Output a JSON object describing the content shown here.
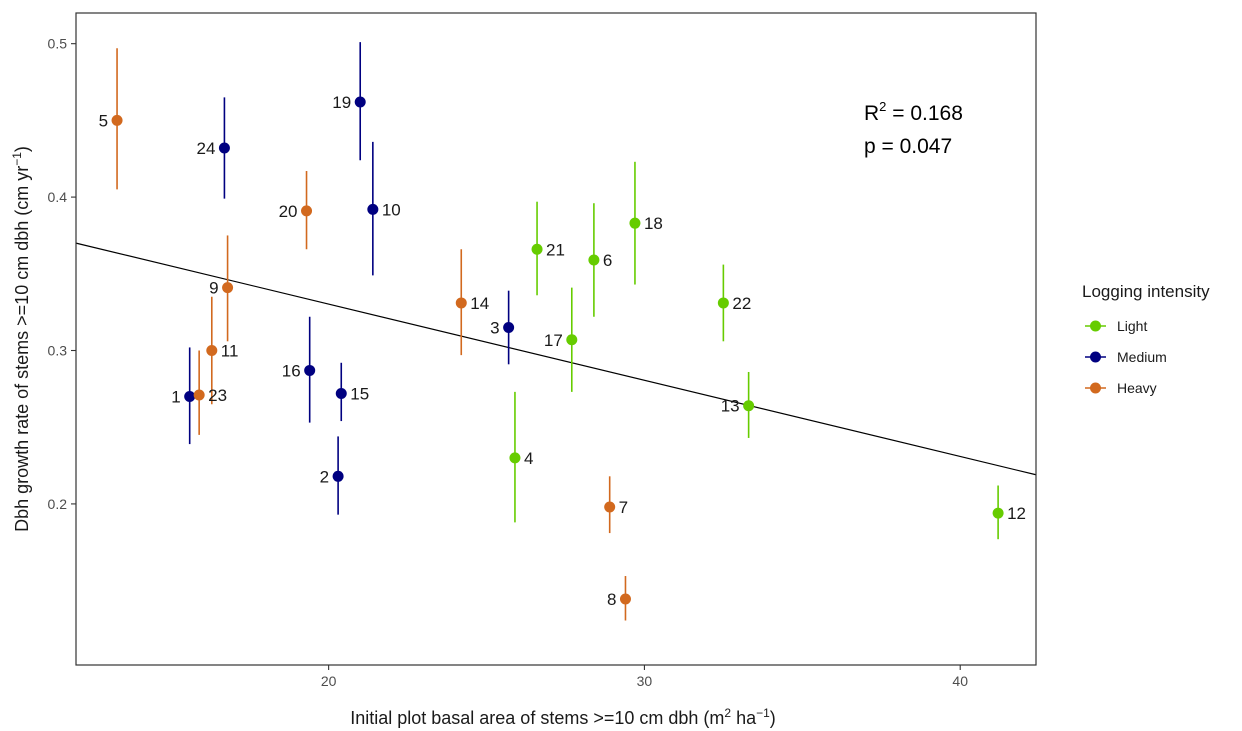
{
  "chart_data": {
    "type": "scatter",
    "xlabel": "Initial plot basal area of stems >=10 cm dbh (m",
    "xlabel_sup1": "2",
    "xlabel_mid": " ha",
    "xlabel_sup2": "−1",
    "xlabel_end": ")",
    "ylabel": "Dbh growth rate of stems >=10 cm dbh (cm  yr",
    "ylabel_sup": "−1",
    "ylabel_end": ")",
    "xlim": [
      12.0,
      42.4
    ],
    "ylim": [
      0.095,
      0.52
    ],
    "x_ticks": [
      20,
      30,
      40
    ],
    "y_ticks": [
      0.2,
      0.3,
      0.4,
      0.5
    ],
    "x_tick_labels": [
      "20",
      "30",
      "40"
    ],
    "y_tick_labels": [
      "0.2",
      "0.3",
      "0.4",
      "0.5"
    ],
    "grid": false,
    "legend_position": "right",
    "legend_title": "Logging intensity",
    "groups": [
      {
        "name": "Light",
        "color": "#66cc00"
      },
      {
        "name": "Medium",
        "color": "#000080"
      },
      {
        "name": "Heavy",
        "color": "#d2691e"
      }
    ],
    "annotation": {
      "r2_prefix": "R",
      "r2_sup": "2",
      "r2_value": " = 0.168",
      "p_text": "p = 0.047"
    },
    "regression_line": {
      "x": [
        12.0,
        42.4
      ],
      "y": [
        0.37,
        0.219
      ]
    },
    "points": [
      {
        "label": "1",
        "group": "Medium",
        "x": 15.6,
        "y": 0.27,
        "ylo": 0.239,
        "yhi": 0.302,
        "label_side": "left"
      },
      {
        "label": "2",
        "group": "Medium",
        "x": 20.3,
        "y": 0.218,
        "ylo": 0.193,
        "yhi": 0.244,
        "label_side": "left"
      },
      {
        "label": "3",
        "group": "Medium",
        "x": 25.7,
        "y": 0.315,
        "ylo": 0.291,
        "yhi": 0.339,
        "label_side": "left"
      },
      {
        "label": "4",
        "group": "Light",
        "x": 25.9,
        "y": 0.23,
        "ylo": 0.188,
        "yhi": 0.273,
        "label_side": "right"
      },
      {
        "label": "5",
        "group": "Heavy",
        "x": 13.3,
        "y": 0.45,
        "ylo": 0.405,
        "yhi": 0.497,
        "label_side": "left"
      },
      {
        "label": "6",
        "group": "Light",
        "x": 28.4,
        "y": 0.359,
        "ylo": 0.322,
        "yhi": 0.396,
        "label_side": "right"
      },
      {
        "label": "7",
        "group": "Heavy",
        "x": 28.9,
        "y": 0.198,
        "ylo": 0.181,
        "yhi": 0.218,
        "label_side": "right"
      },
      {
        "label": "8",
        "group": "Heavy",
        "x": 29.4,
        "y": 0.138,
        "ylo": 0.124,
        "yhi": 0.153,
        "label_side": "left"
      },
      {
        "label": "9",
        "group": "Heavy",
        "x": 16.8,
        "y": 0.341,
        "ylo": 0.306,
        "yhi": 0.375,
        "label_side": "left"
      },
      {
        "label": "10",
        "group": "Medium",
        "x": 21.4,
        "y": 0.392,
        "ylo": 0.349,
        "yhi": 0.436,
        "label_side": "right"
      },
      {
        "label": "11",
        "group": "Heavy",
        "x": 16.3,
        "y": 0.3,
        "ylo": 0.265,
        "yhi": 0.335,
        "label_side": "right"
      },
      {
        "label": "12",
        "group": "Light",
        "x": 41.2,
        "y": 0.194,
        "ylo": 0.177,
        "yhi": 0.212,
        "label_side": "right"
      },
      {
        "label": "13",
        "group": "Light",
        "x": 33.3,
        "y": 0.264,
        "ylo": 0.243,
        "yhi": 0.286,
        "label_side": "left"
      },
      {
        "label": "14",
        "group": "Heavy",
        "x": 24.2,
        "y": 0.331,
        "ylo": 0.297,
        "yhi": 0.366,
        "label_side": "right"
      },
      {
        "label": "15",
        "group": "Medium",
        "x": 20.4,
        "y": 0.272,
        "ylo": 0.254,
        "yhi": 0.292,
        "label_side": "right"
      },
      {
        "label": "16",
        "group": "Medium",
        "x": 19.4,
        "y": 0.287,
        "ylo": 0.253,
        "yhi": 0.322,
        "label_side": "left"
      },
      {
        "label": "17",
        "group": "Light",
        "x": 27.7,
        "y": 0.307,
        "ylo": 0.273,
        "yhi": 0.341,
        "label_side": "left"
      },
      {
        "label": "18",
        "group": "Light",
        "x": 29.7,
        "y": 0.383,
        "ylo": 0.343,
        "yhi": 0.423,
        "label_side": "right"
      },
      {
        "label": "19",
        "group": "Medium",
        "x": 21.0,
        "y": 0.462,
        "ylo": 0.424,
        "yhi": 0.501,
        "label_side": "left"
      },
      {
        "label": "20",
        "group": "Heavy",
        "x": 19.3,
        "y": 0.391,
        "ylo": 0.366,
        "yhi": 0.417,
        "label_side": "left"
      },
      {
        "label": "21",
        "group": "Light",
        "x": 26.6,
        "y": 0.366,
        "ylo": 0.336,
        "yhi": 0.397,
        "label_side": "right"
      },
      {
        "label": "22",
        "group": "Light",
        "x": 32.5,
        "y": 0.331,
        "ylo": 0.306,
        "yhi": 0.356,
        "label_side": "right"
      },
      {
        "label": "23",
        "group": "Heavy",
        "x": 15.9,
        "y": 0.271,
        "ylo": 0.245,
        "yhi": 0.3,
        "label_side": "right"
      },
      {
        "label": "24",
        "group": "Medium",
        "x": 16.7,
        "y": 0.432,
        "ylo": 0.399,
        "yhi": 0.465,
        "label_side": "left"
      }
    ]
  }
}
